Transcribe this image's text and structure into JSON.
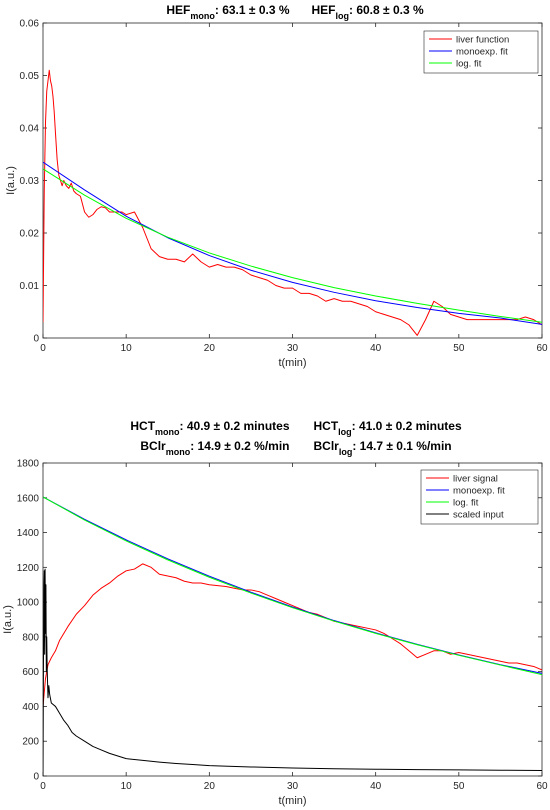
{
  "chart_data": [
    {
      "type": "line",
      "title_parts": [
        {
          "base": "HEF",
          "sub": "mono",
          "rest": ": 63.1 ± 0.3 %"
        },
        {
          "base": "HEF",
          "sub": "log",
          "rest": ": 60.8 ± 0.3 %"
        }
      ],
      "xlabel": "t(min)",
      "ylabel": "I(a.u.)",
      "xlim": [
        0,
        60
      ],
      "ylim": [
        0,
        0.06
      ],
      "xticks": [
        "0",
        "10",
        "20",
        "30",
        "40",
        "50",
        "60"
      ],
      "yticks": [
        "0",
        "0.01",
        "0.02",
        "0.03",
        "0.04",
        "0.05",
        "0.06"
      ],
      "grid": false,
      "legend_position": "top-right",
      "series": [
        {
          "name": "liver function",
          "color": "#ff0000",
          "x": [
            0,
            0.15,
            0.3,
            0.45,
            0.6,
            0.75,
            0.9,
            1.05,
            1.2,
            1.35,
            1.5,
            1.7,
            1.9,
            2.1,
            2.3,
            2.5,
            2.8,
            3.1,
            3.4,
            3.7,
            4.0,
            4.5,
            5.0,
            5.5,
            6.0,
            6.5,
            7.0,
            7.5,
            8.0,
            8.5,
            9.0,
            9.5,
            10,
            11,
            12,
            13,
            14,
            15,
            16,
            17,
            18,
            19,
            20,
            21,
            22,
            23,
            24,
            25,
            26,
            27,
            28,
            29,
            30,
            31,
            32,
            33,
            34,
            35,
            36,
            37,
            38,
            39,
            40,
            41,
            42,
            43,
            44,
            45,
            46,
            47,
            48,
            49,
            50,
            51,
            52,
            53,
            54,
            55,
            56,
            57,
            58,
            59,
            60
          ],
          "y": [
            0.003,
            0.028,
            0.041,
            0.047,
            0.049,
            0.051,
            0.049,
            0.048,
            0.046,
            0.043,
            0.039,
            0.034,
            0.031,
            0.03,
            0.029,
            0.03,
            0.029,
            0.0285,
            0.0295,
            0.028,
            0.0275,
            0.027,
            0.024,
            0.023,
            0.0235,
            0.0245,
            0.025,
            0.0248,
            0.024,
            0.024,
            0.024,
            0.024,
            0.0235,
            0.024,
            0.021,
            0.017,
            0.0155,
            0.015,
            0.015,
            0.0145,
            0.016,
            0.0145,
            0.0135,
            0.014,
            0.0135,
            0.0135,
            0.013,
            0.012,
            0.0115,
            0.011,
            0.01,
            0.0095,
            0.0095,
            0.0085,
            0.0085,
            0.008,
            0.007,
            0.0075,
            0.007,
            0.007,
            0.0065,
            0.006,
            0.005,
            0.0045,
            0.004,
            0.0035,
            0.0025,
            0.0005,
            0.0035,
            0.007,
            0.006,
            0.0045,
            0.004,
            0.0035,
            0.0035,
            0.0035,
            0.0035,
            0.0035,
            0.0035,
            0.0035,
            0.004,
            0.0035,
            0.0025
          ]
        },
        {
          "name": "monoexp. fit",
          "color": "#0000ff",
          "x": [
            0,
            5,
            10,
            15,
            20,
            25,
            30,
            35,
            40,
            45,
            50,
            55,
            60
          ],
          "y": [
            0.0335,
            0.0282,
            0.0232,
            0.0191,
            0.0157,
            0.0129,
            0.0106,
            0.0087,
            0.0071,
            0.0058,
            0.0047,
            0.0038,
            0.0026
          ]
        },
        {
          "name": "log. fit",
          "color": "#00ff00",
          "x": [
            0,
            5,
            10,
            15,
            20,
            25,
            30,
            35,
            40,
            45,
            50,
            55,
            60
          ],
          "y": [
            0.0322,
            0.0272,
            0.0228,
            0.0192,
            0.0162,
            0.0137,
            0.0115,
            0.0096,
            0.008,
            0.0066,
            0.0053,
            0.0041,
            0.003
          ]
        }
      ]
    },
    {
      "type": "line",
      "title_lines": [
        [
          {
            "base": "HCT",
            "sub": "mono",
            "rest": ": 40.9 ± 0.2 minutes"
          },
          {
            "base": "HCT",
            "sub": "log",
            "rest": ": 41.0 ± 0.2 minutes"
          }
        ],
        [
          {
            "base": "BClr",
            "sub": "mono",
            "rest": ": 14.9 ± 0.2 %/min"
          },
          {
            "base": "BClr",
            "sub": "log",
            "rest": ": 14.7 ± 0.1 %/min"
          }
        ]
      ],
      "xlabel": "t(min)",
      "ylabel": "I(a.u.)",
      "xlim": [
        0,
        60
      ],
      "ylim": [
        0,
        1800
      ],
      "xticks": [
        "0",
        "10",
        "20",
        "30",
        "40",
        "50",
        "60"
      ],
      "yticks": [
        "0",
        "200",
        "400",
        "600",
        "800",
        "1000",
        "1200",
        "1400",
        "1600",
        "1800"
      ],
      "grid": false,
      "legend_position": "top-right",
      "series": [
        {
          "name": "liver signal",
          "color": "#ff0000",
          "x": [
            0,
            0.3,
            0.6,
            1,
            1.5,
            2,
            3,
            4,
            5,
            6,
            7,
            8,
            9,
            10,
            11,
            12,
            13,
            14,
            15,
            16,
            17,
            18,
            19,
            20,
            21,
            22,
            23,
            24,
            25,
            26,
            27,
            28,
            29,
            30,
            31,
            32,
            33,
            34,
            35,
            36,
            37,
            38,
            39,
            40,
            41,
            42,
            43,
            44,
            45,
            46,
            47,
            48,
            49,
            50,
            51,
            52,
            53,
            54,
            55,
            56,
            57,
            58,
            59,
            60
          ],
          "y": [
            400,
            560,
            640,
            680,
            720,
            780,
            860,
            930,
            980,
            1040,
            1080,
            1110,
            1150,
            1180,
            1190,
            1220,
            1200,
            1160,
            1150,
            1140,
            1120,
            1110,
            1110,
            1100,
            1095,
            1090,
            1080,
            1070,
            1070,
            1060,
            1040,
            1020,
            1000,
            980,
            960,
            940,
            930,
            910,
            890,
            880,
            870,
            860,
            850,
            840,
            820,
            790,
            760,
            720,
            680,
            700,
            720,
            720,
            700,
            710,
            700,
            690,
            680,
            670,
            660,
            650,
            650,
            640,
            630,
            610
          ]
        },
        {
          "name": "monoexp. fit",
          "color": "#0000ff",
          "x": [
            0,
            5,
            10,
            15,
            20,
            25,
            30,
            35,
            40,
            45,
            50,
            55,
            60
          ],
          "y": [
            1605,
            1476,
            1358,
            1249,
            1149,
            1057,
            972,
            894,
            823,
            757,
            696,
            640,
            590
          ]
        },
        {
          "name": "log. fit",
          "color": "#00ff00",
          "x": [
            0,
            5,
            10,
            15,
            20,
            25,
            30,
            35,
            40,
            45,
            50,
            55,
            60
          ],
          "y": [
            1605,
            1472,
            1352,
            1243,
            1143,
            1052,
            968,
            891,
            820,
            755,
            694,
            638,
            583
          ]
        },
        {
          "name": "scaled input",
          "color": "#000000",
          "x": [
            0,
            0.05,
            0.1,
            0.15,
            0.2,
            0.25,
            0.3,
            0.35,
            0.4,
            0.45,
            0.5,
            0.6,
            0.7,
            0.8,
            1,
            1.5,
            2,
            2.5,
            3,
            3.5,
            4,
            5,
            6,
            7,
            8,
            9,
            10,
            12,
            14,
            16,
            18,
            20,
            25,
            30,
            35,
            40,
            45,
            50,
            55,
            60
          ],
          "y": [
            0,
            600,
            1050,
            1180,
            700,
            1190,
            820,
            1100,
            600,
            800,
            620,
            450,
            520,
            470,
            420,
            400,
            360,
            320,
            290,
            250,
            230,
            200,
            170,
            150,
            130,
            115,
            100,
            90,
            80,
            72,
            66,
            60,
            52,
            46,
            42,
            39,
            37,
            35,
            33,
            32
          ]
        }
      ]
    }
  ]
}
